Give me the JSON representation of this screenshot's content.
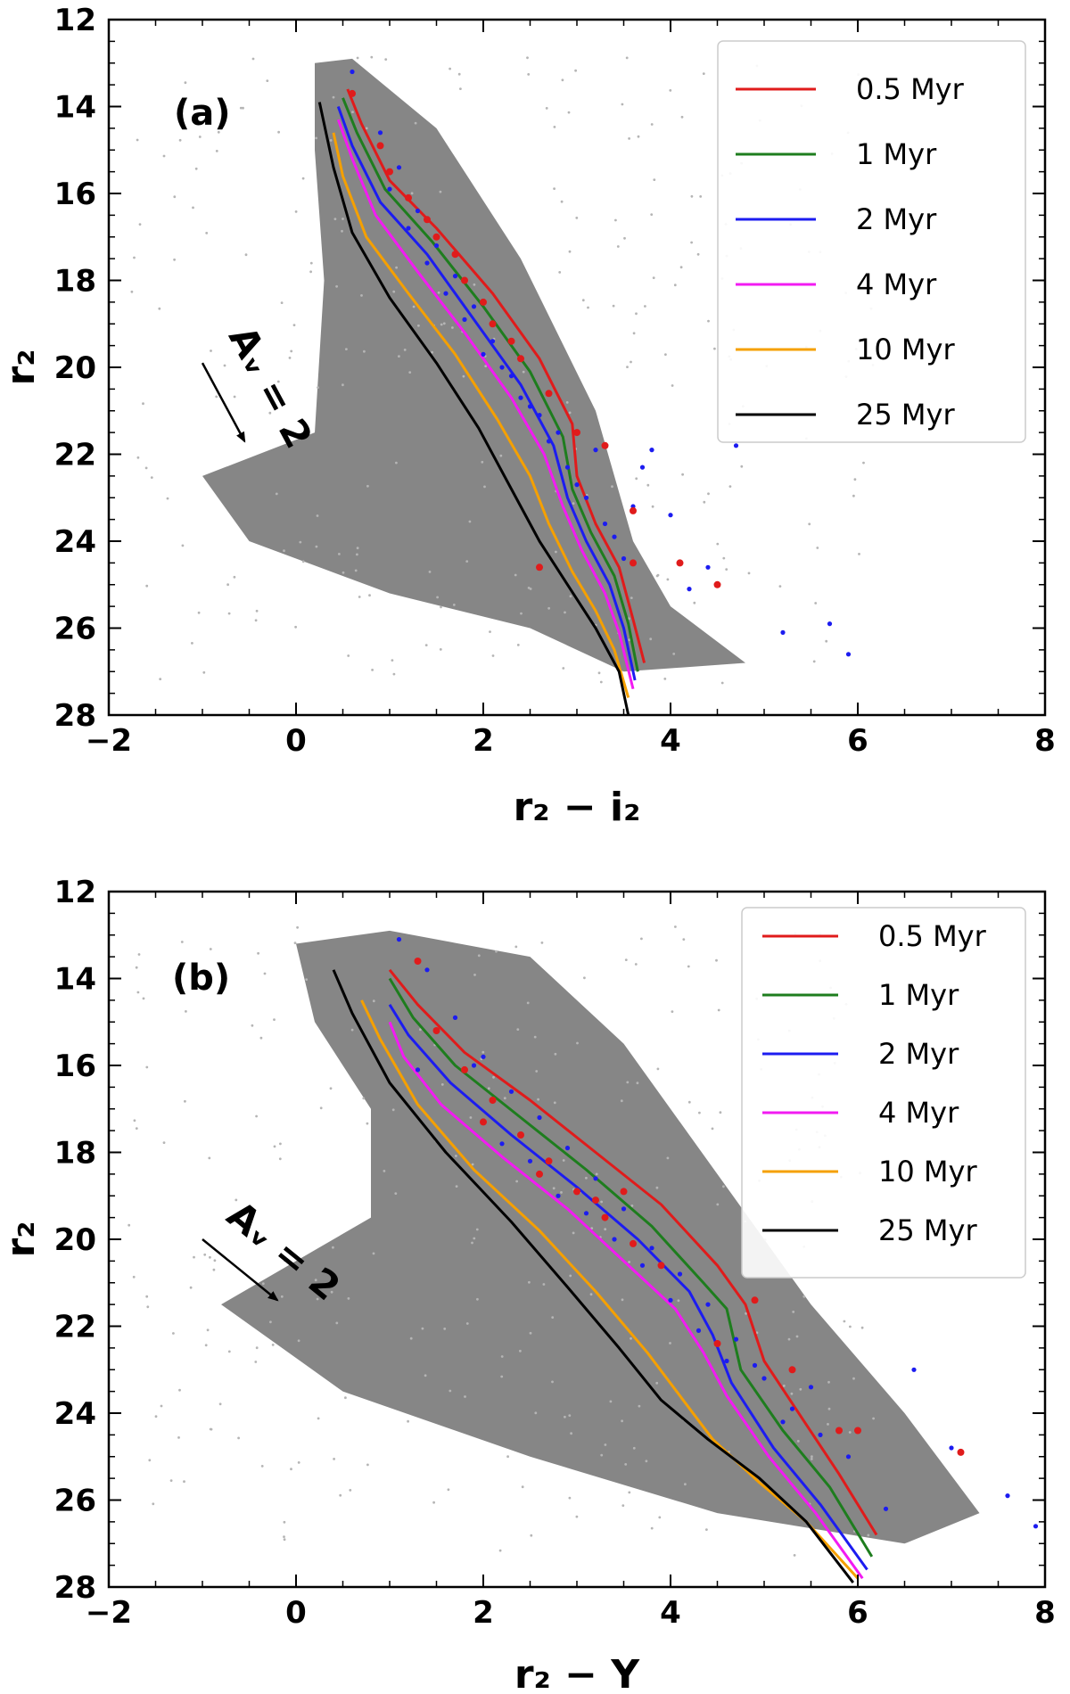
{
  "chart_data": [
    {
      "type": "scatter",
      "panel_label": "(a)",
      "xlabel": "r₂ − i₂",
      "ylabel": "r₂",
      "xlim": [
        -2,
        8
      ],
      "ylim": [
        28,
        12
      ],
      "xticks": [
        -2,
        0,
        2,
        4,
        6,
        8
      ],
      "yticks": [
        12,
        14,
        16,
        18,
        20,
        22,
        24,
        26,
        28
      ],
      "xtick_labels": [
        "−2",
        "0",
        "2",
        "4",
        "6",
        "8"
      ],
      "ytick_labels": [
        "12",
        "14",
        "16",
        "18",
        "20",
        "22",
        "24",
        "26",
        "28"
      ],
      "legend_position": "top-right",
      "extinction_vector": {
        "label": "Aᵥ = 2",
        "from": [
          -1.0,
          19.9
        ],
        "to": [
          -0.55,
          21.7
        ]
      },
      "field_stars": {
        "color": "#808080",
        "region": [
          [
            0.2,
            13.0
          ],
          [
            0.6,
            12.9
          ],
          [
            1.5,
            14.5
          ],
          [
            2.4,
            17.5
          ],
          [
            3.2,
            21.0
          ],
          [
            3.6,
            24.0
          ],
          [
            4.0,
            25.5
          ],
          [
            4.8,
            26.8
          ],
          [
            3.5,
            27.0
          ],
          [
            2.5,
            26.0
          ],
          [
            1.0,
            25.2
          ],
          [
            -0.5,
            24.0
          ],
          [
            -1.0,
            22.5
          ],
          [
            0.2,
            21.5
          ],
          [
            0.3,
            18.0
          ],
          [
            0.2,
            15.0
          ]
        ]
      },
      "series": [
        {
          "name": "0.5 Myr",
          "color": "#e01b1b",
          "x": [
            0.55,
            0.7,
            1.0,
            1.5,
            2.1,
            2.6,
            2.95,
            3.0,
            3.2,
            3.45,
            3.6,
            3.72
          ],
          "y": [
            13.6,
            14.4,
            15.7,
            16.8,
            18.3,
            19.8,
            21.3,
            22.5,
            23.6,
            24.6,
            25.8,
            26.8
          ]
        },
        {
          "name": "1 Myr",
          "color": "#1e7d1e",
          "x": [
            0.5,
            0.65,
            0.95,
            1.45,
            2.0,
            2.5,
            2.85,
            2.95,
            3.15,
            3.4,
            3.55,
            3.65
          ],
          "y": [
            13.8,
            14.6,
            15.9,
            17.1,
            18.6,
            20.1,
            21.6,
            22.8,
            23.8,
            24.8,
            25.9,
            27.0
          ]
        },
        {
          "name": "2 Myr",
          "color": "#1c1cf0",
          "x": [
            0.45,
            0.6,
            0.9,
            1.4,
            1.9,
            2.4,
            2.75,
            2.9,
            3.1,
            3.35,
            3.5,
            3.62
          ],
          "y": [
            14.0,
            14.9,
            16.2,
            17.4,
            18.9,
            20.4,
            21.8,
            23.0,
            24.0,
            25.0,
            26.0,
            27.2
          ]
        },
        {
          "name": "4 Myr",
          "color": "#f21bf2",
          "x": [
            0.45,
            0.6,
            0.85,
            1.3,
            1.8,
            2.3,
            2.65,
            2.85,
            3.05,
            3.3,
            3.45,
            3.6
          ],
          "y": [
            14.3,
            15.2,
            16.5,
            17.8,
            19.2,
            20.7,
            22.0,
            23.2,
            24.2,
            25.2,
            26.1,
            27.4
          ]
        },
        {
          "name": "10 Myr",
          "color": "#f5a000",
          "x": [
            0.4,
            0.5,
            0.75,
            1.2,
            1.7,
            2.15,
            2.5,
            2.7,
            2.95,
            3.2,
            3.4,
            3.55
          ],
          "y": [
            14.6,
            15.6,
            17.0,
            18.3,
            19.7,
            21.2,
            22.5,
            23.6,
            24.7,
            25.6,
            26.5,
            27.6
          ]
        },
        {
          "name": "25 Myr",
          "color": "#000000",
          "x": [
            0.25,
            0.4,
            0.6,
            1.0,
            1.5,
            1.95,
            2.3,
            2.6,
            2.9,
            3.2,
            3.45,
            3.55
          ],
          "y": [
            13.9,
            15.4,
            16.9,
            18.4,
            19.9,
            21.4,
            22.8,
            24.0,
            25.0,
            26.0,
            27.0,
            28.0
          ]
        }
      ],
      "members_blue": {
        "color": "#1c1cf0",
        "x": [
          0.6,
          0.9,
          1.1,
          1.3,
          1.5,
          1.7,
          1.9,
          2.1,
          2.3,
          2.5,
          2.7,
          2.9,
          3.1,
          3.3,
          3.5,
          3.7,
          4.0,
          4.4,
          4.7,
          5.2,
          5.7,
          5.9,
          1.0,
          1.4,
          1.8,
          2.2,
          2.6,
          3.0,
          3.4,
          3.8,
          1.2,
          1.6,
          2.0,
          2.4,
          2.8,
          3.2,
          3.6,
          4.2
        ],
        "y": [
          13.2,
          14.6,
          15.4,
          16.4,
          17.2,
          17.9,
          18.6,
          19.4,
          20.2,
          20.9,
          21.7,
          22.3,
          23.0,
          23.6,
          24.4,
          22.3,
          23.4,
          24.6,
          21.8,
          26.1,
          25.9,
          26.6,
          15.9,
          17.6,
          18.9,
          20.0,
          21.1,
          22.7,
          23.9,
          21.9,
          16.8,
          18.3,
          19.7,
          20.7,
          21.5,
          21.9,
          23.2,
          25.1
        ]
      },
      "members_red": {
        "color": "#e01b1b",
        "x": [
          0.6,
          0.9,
          1.2,
          1.5,
          1.8,
          2.1,
          2.4,
          2.7,
          3.0,
          3.3,
          3.6,
          4.1,
          4.5,
          1.0,
          1.4,
          1.7,
          2.0,
          2.3,
          3.6,
          2.6
        ],
        "y": [
          13.7,
          14.9,
          16.1,
          17.0,
          18.0,
          19.0,
          19.8,
          20.6,
          21.5,
          21.8,
          24.5,
          24.5,
          25.0,
          15.5,
          16.6,
          17.4,
          18.5,
          19.4,
          23.3,
          24.6
        ]
      }
    },
    {
      "type": "scatter",
      "panel_label": "(b)",
      "xlabel": "r₂ − Y",
      "ylabel": "r₂",
      "xlim": [
        -2,
        8
      ],
      "ylim": [
        28,
        12
      ],
      "xticks": [
        -2,
        0,
        2,
        4,
        6,
        8
      ],
      "yticks": [
        12,
        14,
        16,
        18,
        20,
        22,
        24,
        26,
        28
      ],
      "xtick_labels": [
        "−2",
        "0",
        "2",
        "4",
        "6",
        "8"
      ],
      "ytick_labels": [
        "12",
        "14",
        "16",
        "18",
        "20",
        "22",
        "24",
        "26",
        "28"
      ],
      "legend_position": "top-right",
      "extinction_vector": {
        "label": "Aᵥ = 2",
        "from": [
          -1.0,
          20.0
        ],
        "to": [
          -0.2,
          21.4
        ]
      },
      "field_stars": {
        "color": "#808080",
        "region": [
          [
            0.0,
            13.2
          ],
          [
            1.0,
            12.9
          ],
          [
            2.5,
            13.5
          ],
          [
            3.5,
            15.5
          ],
          [
            4.5,
            18.5
          ],
          [
            5.5,
            21.5
          ],
          [
            6.5,
            24.0
          ],
          [
            7.3,
            26.3
          ],
          [
            6.5,
            27.0
          ],
          [
            4.5,
            26.3
          ],
          [
            2.5,
            25.0
          ],
          [
            0.5,
            23.5
          ],
          [
            -0.8,
            21.5
          ],
          [
            0.8,
            19.5
          ],
          [
            0.8,
            17.0
          ],
          [
            0.2,
            15.0
          ]
        ]
      },
      "series": [
        {
          "name": "0.5 Myr",
          "color": "#e01b1b",
          "x": [
            1.0,
            1.3,
            1.8,
            2.5,
            3.2,
            3.9,
            4.5,
            4.8,
            5.0,
            5.4,
            5.8,
            6.2
          ],
          "y": [
            13.8,
            14.6,
            15.7,
            16.8,
            18.0,
            19.2,
            20.6,
            21.5,
            22.8,
            24.1,
            25.4,
            26.8
          ]
        },
        {
          "name": "1 Myr",
          "color": "#1e7d1e",
          "x": [
            1.0,
            1.25,
            1.7,
            2.4,
            3.1,
            3.8,
            4.35,
            4.6,
            4.75,
            5.2,
            5.7,
            6.15
          ],
          "y": [
            14.0,
            14.9,
            16.0,
            17.2,
            18.4,
            19.7,
            21.0,
            21.6,
            23.0,
            24.4,
            25.7,
            27.3
          ]
        },
        {
          "name": "2 Myr",
          "color": "#1c1cf0",
          "x": [
            1.0,
            1.2,
            1.65,
            2.3,
            3.0,
            3.65,
            4.2,
            4.45,
            4.65,
            5.1,
            5.6,
            6.1
          ],
          "y": [
            14.6,
            15.3,
            16.4,
            17.6,
            18.8,
            20.0,
            21.2,
            22.2,
            23.3,
            24.8,
            26.1,
            27.6
          ]
        },
        {
          "name": "4 Myr",
          "color": "#f21bf2",
          "x": [
            1.0,
            1.15,
            1.55,
            2.2,
            2.9,
            3.5,
            4.05,
            4.35,
            4.6,
            5.05,
            5.55,
            6.05
          ],
          "y": [
            15.0,
            15.8,
            16.9,
            18.1,
            19.3,
            20.5,
            21.6,
            22.6,
            23.6,
            25.0,
            26.3,
            27.8
          ]
        },
        {
          "name": "10 Myr",
          "color": "#f5a000",
          "x": [
            0.7,
            0.9,
            1.3,
            1.9,
            2.6,
            3.2,
            3.75,
            4.1,
            4.45,
            4.95,
            5.45,
            6.0
          ],
          "y": [
            14.5,
            15.4,
            16.9,
            18.4,
            19.8,
            21.2,
            22.6,
            23.6,
            24.6,
            25.6,
            26.5,
            27.8
          ]
        },
        {
          "name": "25 Myr",
          "color": "#000000",
          "x": [
            0.4,
            0.6,
            1.0,
            1.6,
            2.3,
            2.9,
            3.45,
            3.9,
            4.4,
            4.95,
            5.45,
            5.95
          ],
          "y": [
            13.8,
            14.8,
            16.4,
            18.0,
            19.6,
            21.1,
            22.5,
            23.7,
            24.6,
            25.5,
            26.5,
            27.9
          ]
        }
      ],
      "members_blue": {
        "color": "#1c1cf0",
        "x": [
          1.1,
          1.4,
          1.7,
          2.0,
          2.3,
          2.6,
          2.9,
          3.2,
          3.5,
          3.8,
          4.1,
          4.4,
          4.7,
          5.0,
          5.3,
          5.6,
          5.9,
          6.3,
          6.6,
          7.0,
          7.6,
          7.9,
          1.3,
          1.9,
          2.5,
          3.1,
          3.7,
          4.3,
          4.9,
          5.5,
          2.2,
          2.8,
          3.4,
          4.0,
          4.6,
          5.2
        ],
        "y": [
          13.1,
          13.8,
          14.9,
          15.8,
          16.6,
          17.2,
          17.9,
          18.6,
          19.3,
          20.2,
          20.8,
          21.5,
          22.3,
          23.2,
          23.9,
          24.5,
          25.0,
          26.2,
          23.0,
          24.8,
          25.9,
          26.6,
          16.1,
          16.0,
          18.2,
          19.4,
          20.6,
          22.1,
          22.9,
          23.4,
          17.8,
          19.0,
          20.0,
          21.4,
          22.8,
          24.2
        ]
      },
      "members_red": {
        "color": "#e01b1b",
        "x": [
          1.3,
          1.5,
          1.8,
          2.1,
          2.4,
          2.7,
          3.0,
          3.3,
          3.6,
          3.9,
          4.5,
          4.9,
          5.3,
          5.8,
          7.1,
          2.0,
          2.6,
          3.2,
          3.5,
          6.0
        ],
        "y": [
          13.6,
          15.2,
          16.1,
          16.8,
          17.6,
          18.2,
          18.9,
          19.5,
          20.1,
          20.6,
          22.4,
          21.4,
          23.0,
          24.4,
          24.9,
          17.3,
          18.5,
          19.1,
          18.9,
          24.4
        ]
      }
    }
  ]
}
